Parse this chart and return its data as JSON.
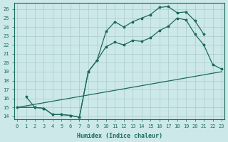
{
  "xlabel": "Humidex (Indice chaleur)",
  "bg_color": "#cce8e8",
  "grid_color": "#aacccc",
  "line_color": "#1a6b5a",
  "xlim": [
    -0.3,
    23.3
  ],
  "ylim": [
    13.7,
    26.7
  ],
  "xticks": [
    0,
    1,
    2,
    3,
    4,
    5,
    6,
    7,
    8,
    9,
    10,
    11,
    12,
    13,
    14,
    15,
    16,
    17,
    18,
    19,
    20,
    21,
    22,
    23
  ],
  "yticks": [
    14,
    15,
    16,
    17,
    18,
    19,
    20,
    21,
    22,
    23,
    24,
    25,
    26
  ],
  "line1_x": [
    0,
    2,
    3,
    4,
    5,
    6,
    7,
    8,
    9,
    10,
    11,
    12,
    13,
    14,
    15,
    16,
    17,
    18,
    19,
    20,
    21
  ],
  "line1_y": [
    15.0,
    15.0,
    14.9,
    14.2,
    14.2,
    14.1,
    13.9,
    19.0,
    20.3,
    23.5,
    24.6,
    24.0,
    24.6,
    25.0,
    25.4,
    26.2,
    26.3,
    25.6,
    25.7,
    24.7,
    23.2
  ],
  "line2_x": [
    1,
    2,
    3,
    4,
    5,
    6,
    7,
    8,
    9,
    10,
    11,
    12,
    13,
    14,
    15,
    16,
    17,
    18,
    19,
    20,
    21,
    22,
    23
  ],
  "line2_y": [
    16.2,
    15.0,
    14.9,
    14.2,
    14.2,
    14.1,
    13.9,
    19.0,
    20.3,
    21.8,
    22.3,
    22.0,
    22.5,
    22.4,
    22.8,
    23.6,
    24.1,
    25.0,
    24.8,
    23.2,
    22.0,
    19.8,
    19.3
  ],
  "line3_x": [
    0,
    23
  ],
  "line3_y": [
    15.0,
    19.0
  ]
}
